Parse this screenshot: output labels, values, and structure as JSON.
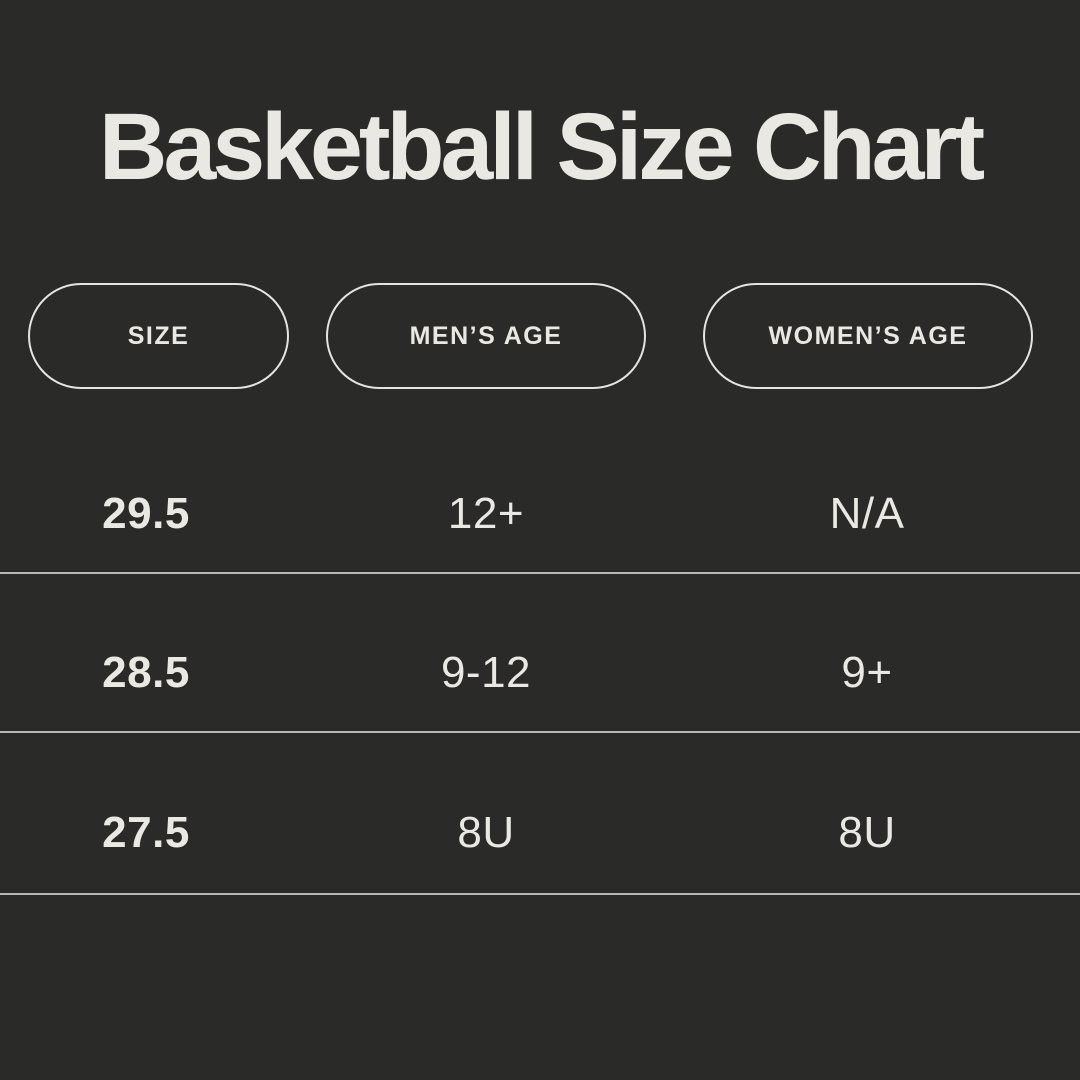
{
  "title": "Basketball Size Chart",
  "colors": {
    "background": "#2a2a29",
    "text": "#eae8e2",
    "pill_border": "#e6e4df",
    "divider": "rgba(226,224,219,0.78)"
  },
  "table": {
    "columns": [
      {
        "id": "size",
        "label": "SIZE"
      },
      {
        "id": "mens_age",
        "label": "MEN’S AGE"
      },
      {
        "id": "womens_age",
        "label": "WOMEN’S AGE"
      }
    ],
    "rows": [
      {
        "size": "29.5",
        "mens_age": "12+",
        "womens_age": "N/A"
      },
      {
        "size": "28.5",
        "mens_age": "9-12",
        "womens_age": "9+"
      },
      {
        "size": "27.5",
        "mens_age": "8U",
        "womens_age": "8U"
      }
    ]
  },
  "chart_data": {
    "type": "table",
    "title": "Basketball Size Chart",
    "columns": [
      "SIZE",
      "MEN’S AGE",
      "WOMEN’S AGE"
    ],
    "rows": [
      [
        "29.5",
        "12+",
        "N/A"
      ],
      [
        "28.5",
        "9-12",
        "9+"
      ],
      [
        "27.5",
        "8U",
        "8U"
      ]
    ],
    "layout": {
      "header_style": "outlined-pill",
      "row_dividers": true,
      "background": "dark"
    }
  }
}
